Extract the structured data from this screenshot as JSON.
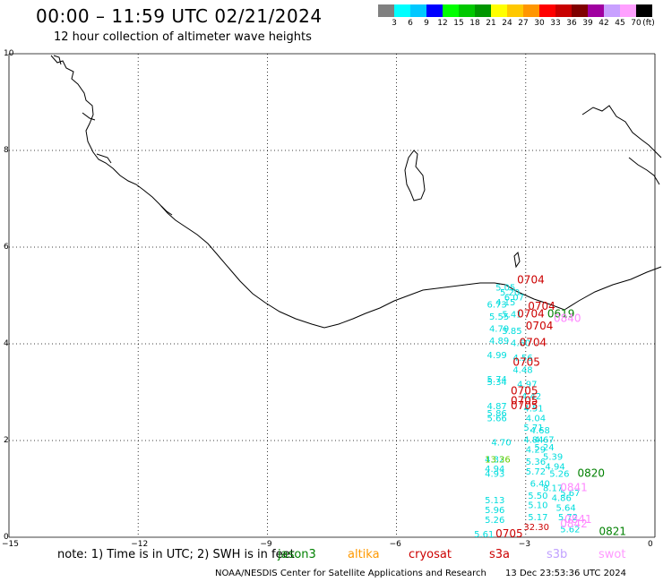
{
  "title": "00:00 – 11:59 UTC 02/21/2024",
  "subtitle": "12 hour collection of altimeter wave heights",
  "scale": {
    "unit_label": "(ft)",
    "colors": [
      "#808080",
      "#00ffff",
      "#00c8ff",
      "#0000ff",
      "#00ff00",
      "#00c800",
      "#009600",
      "#ffff00",
      "#ffc800",
      "#ff9600",
      "#ff0000",
      "#c80000",
      "#800000",
      "#a000a0",
      "#c8a0ff",
      "#ffa0ff",
      "#000000"
    ],
    "labels": [
      "3",
      "6",
      "9",
      "12",
      "15",
      "18",
      "21",
      "24",
      "27",
      "30",
      "33",
      "36",
      "39",
      "42",
      "45",
      "70"
    ]
  },
  "axes": {
    "x_ticks": [
      "−15",
      "−12",
      "−9",
      "−6",
      "−3",
      "0"
    ],
    "y_ticks": [
      "10",
      "8",
      "6",
      "4",
      "2",
      "0"
    ]
  },
  "map": {
    "grid": true,
    "grid_style": "dotted",
    "coastline_color": "#000000"
  },
  "note": "note: 1) Time is in UTC; 2) SWH is in feet",
  "legend": [
    {
      "name": "jason3",
      "color": "#008000"
    },
    {
      "name": "altika",
      "color": "#ff9900"
    },
    {
      "name": "cryosat",
      "color": "#cc0000"
    },
    {
      "name": "s3a",
      "color": "#cc0000"
    },
    {
      "name": "s3b",
      "color": "#c0a0ff"
    },
    {
      "name": "swot",
      "color": "#ff99ff"
    }
  ],
  "footer": "NOAA/NESDIS Center for Satellite Applications and Research",
  "timestamp": "13 Dec 23:53:36 UTC 2024",
  "chart_data": {
    "type": "scatter",
    "x_range": [
      -15,
      0
    ],
    "y_range": [
      0,
      10
    ],
    "wave_heights": [
      {
        "x": -3.7,
        "y": 5.1,
        "label": "5.05",
        "color": "#00dddd"
      },
      {
        "x": -3.6,
        "y": 5.0,
        "label": "5.20",
        "color": "#00dddd"
      },
      {
        "x": -3.5,
        "y": 4.9,
        "label": "6.07",
        "color": "#00dddd"
      },
      {
        "x": -3.9,
        "y": 4.75,
        "label": "6.73",
        "color": "#00dddd"
      },
      {
        "x": -3.7,
        "y": 4.8,
        "label": "4.15",
        "color": "#00dddd"
      },
      {
        "x": -3.85,
        "y": 4.5,
        "label": "5.55",
        "color": "#00dddd"
      },
      {
        "x": -3.55,
        "y": 4.55,
        "label": "5.41",
        "color": "#00dddd"
      },
      {
        "x": -3.85,
        "y": 4.25,
        "label": "4.79",
        "color": "#00dddd"
      },
      {
        "x": -3.55,
        "y": 4.2,
        "label": "5.85",
        "color": "#00dddd"
      },
      {
        "x": -3.85,
        "y": 4.0,
        "label": "4.89",
        "color": "#00dddd"
      },
      {
        "x": -3.35,
        "y": 3.95,
        "label": "4.60",
        "color": "#00dddd"
      },
      {
        "x": -3.9,
        "y": 3.7,
        "label": "4.99",
        "color": "#00dddd"
      },
      {
        "x": -3.3,
        "y": 3.65,
        "label": "4.56",
        "color": "#00dddd"
      },
      {
        "x": -3.3,
        "y": 3.4,
        "label": "4.48",
        "color": "#00dddd"
      },
      {
        "x": -3.9,
        "y": 3.2,
        "label": "5.74",
        "color": "#00dddd"
      },
      {
        "x": -3.9,
        "y": 3.15,
        "label": "5.34",
        "color": "#00dddd"
      },
      {
        "x": -3.2,
        "y": 3.1,
        "label": "4.97",
        "color": "#00dddd"
      },
      {
        "x": -3.1,
        "y": 2.85,
        "label": "4.42",
        "color": "#00dddd"
      },
      {
        "x": -3.9,
        "y": 2.65,
        "label": "4.87",
        "color": "#00dddd"
      },
      {
        "x": -3.05,
        "y": 2.6,
        "label": "4.51",
        "color": "#00dddd"
      },
      {
        "x": -3.9,
        "y": 2.5,
        "label": "5.86",
        "color": "#00dddd"
      },
      {
        "x": -3.9,
        "y": 2.4,
        "label": "5.66",
        "color": "#00dddd"
      },
      {
        "x": -3.0,
        "y": 2.4,
        "label": "4.04",
        "color": "#00dddd"
      },
      {
        "x": -3.05,
        "y": 2.2,
        "label": "5.71",
        "color": "#00dddd"
      },
      {
        "x": -2.9,
        "y": 2.15,
        "label": "4.68",
        "color": "#00dddd"
      },
      {
        "x": -3.05,
        "y": 1.95,
        "label": "4.84",
        "color": "#00dddd"
      },
      {
        "x": -2.8,
        "y": 1.95,
        "label": "4.67",
        "color": "#00dddd"
      },
      {
        "x": -3.8,
        "y": 1.9,
        "label": "4.70",
        "color": "#00dddd"
      },
      {
        "x": -3.0,
        "y": 1.75,
        "label": "4.29",
        "color": "#00dddd"
      },
      {
        "x": -2.8,
        "y": 1.8,
        "label": "5.24",
        "color": "#00dddd"
      },
      {
        "x": -2.6,
        "y": 1.6,
        "label": "5.39",
        "color": "#00dddd"
      },
      {
        "x": -3.95,
        "y": 1.55,
        "label": "4.32",
        "color": "#00dddd"
      },
      {
        "x": -3.0,
        "y": 1.5,
        "label": "5.36",
        "color": "#00dddd"
      },
      {
        "x": -2.55,
        "y": 1.4,
        "label": "4.94",
        "color": "#00dddd"
      },
      {
        "x": -3.95,
        "y": 1.35,
        "label": "4.94",
        "color": "#00dddd"
      },
      {
        "x": -3.95,
        "y": 1.25,
        "label": "4.93",
        "color": "#00dddd"
      },
      {
        "x": -3.0,
        "y": 1.3,
        "label": "5.72",
        "color": "#00dddd"
      },
      {
        "x": -2.45,
        "y": 1.25,
        "label": "5.26",
        "color": "#00dddd"
      },
      {
        "x": -2.9,
        "y": 1.05,
        "label": "6.40",
        "color": "#00dddd"
      },
      {
        "x": -2.6,
        "y": 0.95,
        "label": "8.17",
        "color": "#00dddd"
      },
      {
        "x": -2.2,
        "y": 0.85,
        "label": "5.67",
        "color": "#00dddd"
      },
      {
        "x": -2.95,
        "y": 0.8,
        "label": "5.50",
        "color": "#00dddd"
      },
      {
        "x": -2.4,
        "y": 0.75,
        "label": "4.86",
        "color": "#00dddd"
      },
      {
        "x": -3.95,
        "y": 0.7,
        "label": "5.13",
        "color": "#00dddd"
      },
      {
        "x": -2.95,
        "y": 0.6,
        "label": "5.10",
        "color": "#00dddd"
      },
      {
        "x": -2.3,
        "y": 0.55,
        "label": "5.64",
        "color": "#00dddd"
      },
      {
        "x": -3.95,
        "y": 0.5,
        "label": "5.96",
        "color": "#00dddd"
      },
      {
        "x": -2.95,
        "y": 0.35,
        "label": "5.17",
        "color": "#00dddd"
      },
      {
        "x": -2.25,
        "y": 0.35,
        "label": "5.72",
        "color": "#00dddd"
      },
      {
        "x": -3.95,
        "y": 0.3,
        "label": "5.26",
        "color": "#00dddd"
      },
      {
        "x": -2.2,
        "y": 0.1,
        "label": "5.62",
        "color": "#00dddd"
      },
      {
        "x": -4.2,
        "y": 0.0,
        "label": "5.61",
        "color": "#00dddd"
      },
      {
        "x": -3.05,
        "y": 0.15,
        "label": "32.30",
        "color": "#cc0000"
      },
      {
        "x": -3.95,
        "y": 1.55,
        "label": "13.36",
        "color": "#66cc00"
      },
      {
        "x": -2.5,
        "y": 4.55,
        "label": "0619",
        "color": "#008000"
      },
      {
        "x": -2.35,
        "y": 4.45,
        "label": "0840",
        "color": "#ff88ff"
      },
      {
        "x": -3.2,
        "y": 5.25,
        "label": "0704",
        "color": "#cc0000"
      },
      {
        "x": -2.95,
        "y": 4.7,
        "label": "0704",
        "color": "#cc0000"
      },
      {
        "x": -3.2,
        "y": 4.55,
        "label": "0704",
        "color": "#cc0000"
      },
      {
        "x": -3.0,
        "y": 4.3,
        "label": "0704",
        "color": "#cc0000"
      },
      {
        "x": -3.15,
        "y": 3.95,
        "label": "0704",
        "color": "#cc0000"
      },
      {
        "x": -3.3,
        "y": 3.55,
        "label": "0705",
        "color": "#cc0000"
      },
      {
        "x": -3.35,
        "y": 2.95,
        "label": "0705",
        "color": "#cc0000"
      },
      {
        "x": -3.35,
        "y": 2.75,
        "label": "0705",
        "color": "#cc0000"
      },
      {
        "x": -3.35,
        "y": 2.65,
        "label": "0705",
        "color": "#cc0000"
      },
      {
        "x": -3.7,
        "y": 0.0,
        "label": "0705",
        "color": "#cc0000"
      },
      {
        "x": -1.8,
        "y": 1.25,
        "label": "0820",
        "color": "#008000"
      },
      {
        "x": -2.2,
        "y": 0.95,
        "label": "0841",
        "color": "#ff88ff"
      },
      {
        "x": -2.1,
        "y": 0.3,
        "label": "0841",
        "color": "#ff88ff"
      },
      {
        "x": -2.2,
        "y": 0.2,
        "label": "0842",
        "color": "#ff88ff"
      },
      {
        "x": -1.3,
        "y": 0.05,
        "label": "0821",
        "color": "#008000"
      }
    ]
  }
}
